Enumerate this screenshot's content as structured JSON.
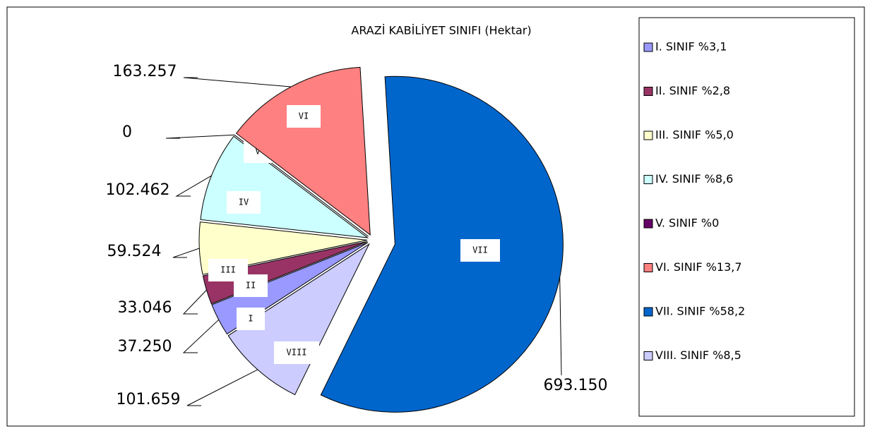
{
  "chart_data": {
    "type": "pie",
    "title": "ARAZİ KABİLİYET SINIFI (Hektar)",
    "categories": [
      "I",
      "II",
      "III",
      "IV",
      "V",
      "VI",
      "VII",
      "VIII"
    ],
    "values": [
      37250,
      33046,
      59524,
      102462,
      0,
      163257,
      693150,
      101659
    ],
    "value_labels": [
      "37.250",
      "33.046",
      "59.524",
      "102.462",
      "0",
      "163.257",
      "693.150",
      "101.659"
    ],
    "legend": [
      "I. SINIF %3,1",
      "II. SINIF %2,8",
      "III. SINIF %5,0",
      "IV. SINIF %8,6",
      "V. SINIF %0",
      "VI. SINIF %13,7",
      "VII. SINIF %58,2",
      "VIII. SINIF %8,5"
    ],
    "colors": [
      "#9999ff",
      "#993366",
      "#ffffcc",
      "#ccffff",
      "#660066",
      "#ff8080",
      "#0066cc",
      "#ccccff"
    ],
    "legend_position": "right"
  }
}
